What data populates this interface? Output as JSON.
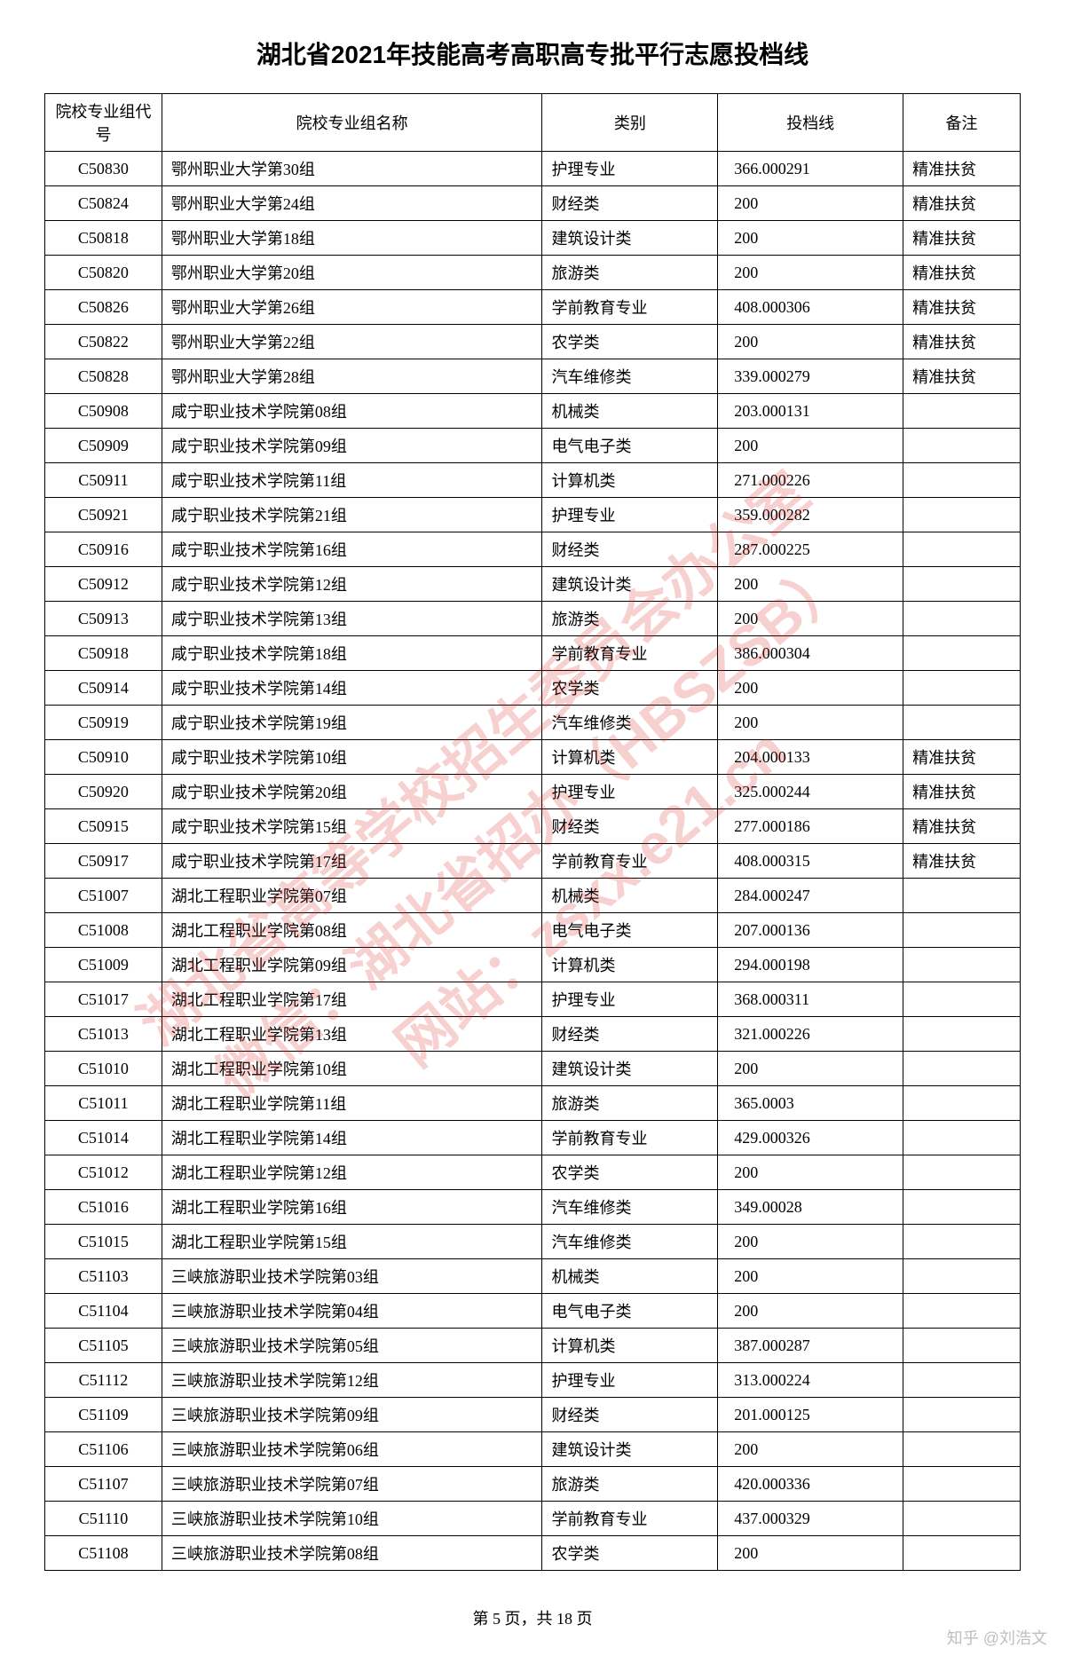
{
  "title": "湖北省2021年技能高考高职高专批平行志愿投档线",
  "columns": [
    "院校专业组代号",
    "院校专业组名称",
    "类别",
    "投档线",
    "备注"
  ],
  "rows": [
    [
      "C50830",
      "鄂州职业大学第30组",
      "护理专业",
      "366.000291",
      "精准扶贫"
    ],
    [
      "C50824",
      "鄂州职业大学第24组",
      "财经类",
      "200",
      "精准扶贫"
    ],
    [
      "C50818",
      "鄂州职业大学第18组",
      "建筑设计类",
      "200",
      "精准扶贫"
    ],
    [
      "C50820",
      "鄂州职业大学第20组",
      "旅游类",
      "200",
      "精准扶贫"
    ],
    [
      "C50826",
      "鄂州职业大学第26组",
      "学前教育专业",
      "408.000306",
      "精准扶贫"
    ],
    [
      "C50822",
      "鄂州职业大学第22组",
      "农学类",
      "200",
      "精准扶贫"
    ],
    [
      "C50828",
      "鄂州职业大学第28组",
      "汽车维修类",
      "339.000279",
      "精准扶贫"
    ],
    [
      "C50908",
      "咸宁职业技术学院第08组",
      "机械类",
      "203.000131",
      ""
    ],
    [
      "C50909",
      "咸宁职业技术学院第09组",
      "电气电子类",
      "200",
      ""
    ],
    [
      "C50911",
      "咸宁职业技术学院第11组",
      "计算机类",
      "271.000226",
      ""
    ],
    [
      "C50921",
      "咸宁职业技术学院第21组",
      "护理专业",
      "359.000282",
      ""
    ],
    [
      "C50916",
      "咸宁职业技术学院第16组",
      "财经类",
      "287.000225",
      ""
    ],
    [
      "C50912",
      "咸宁职业技术学院第12组",
      "建筑设计类",
      "200",
      ""
    ],
    [
      "C50913",
      "咸宁职业技术学院第13组",
      "旅游类",
      "200",
      ""
    ],
    [
      "C50918",
      "咸宁职业技术学院第18组",
      "学前教育专业",
      "386.000304",
      ""
    ],
    [
      "C50914",
      "咸宁职业技术学院第14组",
      "农学类",
      "200",
      ""
    ],
    [
      "C50919",
      "咸宁职业技术学院第19组",
      "汽车维修类",
      "200",
      ""
    ],
    [
      "C50910",
      "咸宁职业技术学院第10组",
      "计算机类",
      "204.000133",
      "精准扶贫"
    ],
    [
      "C50920",
      "咸宁职业技术学院第20组",
      "护理专业",
      "325.000244",
      "精准扶贫"
    ],
    [
      "C50915",
      "咸宁职业技术学院第15组",
      "财经类",
      "277.000186",
      "精准扶贫"
    ],
    [
      "C50917",
      "咸宁职业技术学院第17组",
      "学前教育专业",
      "408.000315",
      "精准扶贫"
    ],
    [
      "C51007",
      "湖北工程职业学院第07组",
      "机械类",
      "284.000247",
      ""
    ],
    [
      "C51008",
      "湖北工程职业学院第08组",
      "电气电子类",
      "207.000136",
      ""
    ],
    [
      "C51009",
      "湖北工程职业学院第09组",
      "计算机类",
      "294.000198",
      ""
    ],
    [
      "C51017",
      "湖北工程职业学院第17组",
      "护理专业",
      "368.000311",
      ""
    ],
    [
      "C51013",
      "湖北工程职业学院第13组",
      "财经类",
      "321.000226",
      ""
    ],
    [
      "C51010",
      "湖北工程职业学院第10组",
      "建筑设计类",
      "200",
      ""
    ],
    [
      "C51011",
      "湖北工程职业学院第11组",
      "旅游类",
      "365.0003",
      ""
    ],
    [
      "C51014",
      "湖北工程职业学院第14组",
      "学前教育专业",
      "429.000326",
      ""
    ],
    [
      "C51012",
      "湖北工程职业学院第12组",
      "农学类",
      "200",
      ""
    ],
    [
      "C51016",
      "湖北工程职业学院第16组",
      "汽车维修类",
      "349.00028",
      ""
    ],
    [
      "C51015",
      "湖北工程职业学院第15组",
      "汽车维修类",
      "200",
      ""
    ],
    [
      "C51103",
      "三峡旅游职业技术学院第03组",
      "机械类",
      "200",
      ""
    ],
    [
      "C51104",
      "三峡旅游职业技术学院第04组",
      "电气电子类",
      "200",
      ""
    ],
    [
      "C51105",
      "三峡旅游职业技术学院第05组",
      "计算机类",
      "387.000287",
      ""
    ],
    [
      "C51112",
      "三峡旅游职业技术学院第12组",
      "护理专业",
      "313.000224",
      ""
    ],
    [
      "C51109",
      "三峡旅游职业技术学院第09组",
      "财经类",
      "201.000125",
      ""
    ],
    [
      "C51106",
      "三峡旅游职业技术学院第06组",
      "建筑设计类",
      "200",
      ""
    ],
    [
      "C51107",
      "三峡旅游职业技术学院第07组",
      "旅游类",
      "420.000336",
      ""
    ],
    [
      "C51110",
      "三峡旅游职业技术学院第10组",
      "学前教育专业",
      "437.000329",
      ""
    ],
    [
      "C51108",
      "三峡旅游职业技术学院第08组",
      "农学类",
      "200",
      ""
    ]
  ],
  "footer": "第 5 页，共 18 页",
  "watermark_lines": [
    "湖北省高等学校招生委员会办公室",
    "微信：湖北省招办（HBSZSB）",
    "网站：zsxx.e21.cn"
  ],
  "author": "知乎 @刘浩文"
}
